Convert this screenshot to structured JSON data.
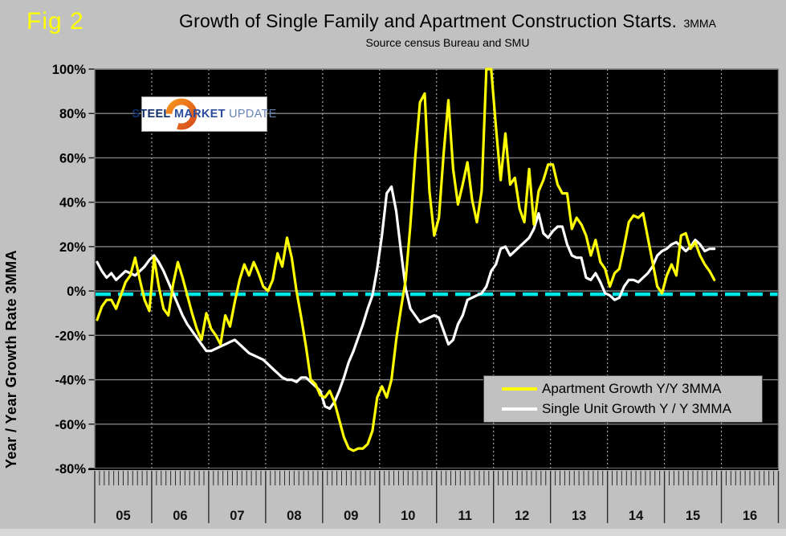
{
  "fig_label": "Fig 2",
  "title": {
    "main": "Growth of Single Family and Apartment Construction Starts.",
    "suffix": "3MMA",
    "subtitle": "Source census Bureau and SMU"
  },
  "logo": {
    "steel": "STEEL",
    "market": "MARKET",
    "update": "UPDATE"
  },
  "y_axis": {
    "title": "Year / Year Growth Rate 3MMA"
  },
  "colors": {
    "background": "#c1c1c1",
    "plot_background": "#000000",
    "gridline": "#828282",
    "year_gridline_dotted": "#a8a8a8",
    "zero_line": "#00e6e6",
    "apartment_series": "#ffff00",
    "single_unit_series": "#ffffff",
    "fig_label": "#ffff00",
    "tick": "#222222"
  },
  "chart_data": {
    "type": "line",
    "title": "Growth of Single Family and Apartment Construction Starts. 3MMA",
    "subtitle": "Source census Bureau and SMU",
    "ylabel": "Year / Year Growth Rate 3MMA",
    "ylim": [
      -80,
      100
    ],
    "y_ticks": [
      100,
      80,
      60,
      40,
      20,
      0,
      -20,
      -40,
      -60,
      -80
    ],
    "y_tick_suffix": "%",
    "x_year_labels": [
      "05",
      "06",
      "07",
      "08",
      "09",
      "10",
      "11",
      "12",
      "13",
      "14",
      "15",
      "16"
    ],
    "x_start": "2005-01",
    "x_frequency": "monthly",
    "grid": {
      "horizontal": "solid gray",
      "vertical": "dotted at year boundaries",
      "minor_x_ticks": "monthly"
    },
    "zero_reference_line": {
      "value": 0,
      "style": "dashed",
      "color": "#00e6e6"
    },
    "legend_position": "lower-right",
    "note": "Yellow apartment series is clipped at the 100% axis maximum during its late-2011 spike. Values are percent, estimated from pixels.",
    "series": [
      {
        "name": "Apartment Growth Y/Y 3MMA",
        "color": "#ffff00",
        "values": [
          -13,
          -7,
          -4,
          -4,
          -8,
          -2,
          4,
          7,
          15,
          5,
          -4,
          -9,
          15,
          2,
          -8,
          -11,
          3,
          13,
          6,
          -2,
          -10,
          -17,
          -22,
          -10,
          -17,
          -20,
          -24,
          -11,
          -16,
          -5,
          5,
          12,
          7,
          13,
          8,
          2,
          0,
          5,
          17,
          11,
          24,
          15,
          0,
          -12,
          -25,
          -40,
          -42,
          -47,
          -48,
          -45,
          -50,
          -58,
          -66,
          -71,
          -72,
          -71,
          -71,
          -69,
          -63,
          -48,
          -43,
          -48,
          -40,
          -22,
          -8,
          5,
          30,
          60,
          85,
          89,
          45,
          25,
          33,
          62,
          86,
          55,
          39,
          48,
          58,
          41,
          31,
          45,
          100,
          100,
          74,
          50,
          71,
          48,
          51,
          37,
          31,
          55,
          30,
          45,
          50,
          57,
          57,
          48,
          44,
          44,
          28,
          33,
          30,
          25,
          16,
          23,
          13,
          10,
          2,
          8,
          10,
          20,
          31,
          34,
          33,
          35,
          24,
          13,
          2,
          -1,
          7,
          12,
          7,
          25,
          26,
          19,
          22,
          16,
          12,
          9,
          5
        ]
      },
      {
        "name": "Single Unit Growth Y / Y 3MMA",
        "color": "#ffffff",
        "values": [
          13,
          9,
          6,
          8,
          5,
          7,
          9,
          8,
          7,
          9,
          11,
          14,
          16,
          13,
          9,
          4,
          -1,
          -6,
          -11,
          -15,
          -18,
          -21,
          -24,
          -27,
          -27,
          -26,
          -25,
          -24,
          -23,
          -22,
          -24,
          -26,
          -28,
          -29,
          -30,
          -31,
          -33,
          -35,
          -37,
          -39,
          -40,
          -40,
          -41,
          -39,
          -39,
          -41,
          -43,
          -45,
          -52,
          -53,
          -50,
          -45,
          -39,
          -32,
          -27,
          -21,
          -15,
          -8,
          -2,
          10,
          25,
          44,
          47,
          36,
          18,
          1,
          -8,
          -11,
          -14,
          -13,
          -12,
          -11,
          -12,
          -18,
          -24,
          -22,
          -15,
          -11,
          -4,
          -3,
          -2,
          -1,
          2,
          9,
          12,
          19,
          20,
          16,
          18,
          20,
          22,
          24,
          28,
          35,
          26,
          24,
          27,
          29,
          29,
          21,
          16,
          15,
          15,
          6,
          5,
          8,
          4,
          -1,
          -2,
          -4,
          -3,
          2,
          5,
          5,
          4,
          6,
          8,
          11,
          16,
          18,
          19,
          21,
          22,
          20,
          18,
          20,
          23,
          21,
          18,
          19,
          19
        ]
      }
    ]
  }
}
